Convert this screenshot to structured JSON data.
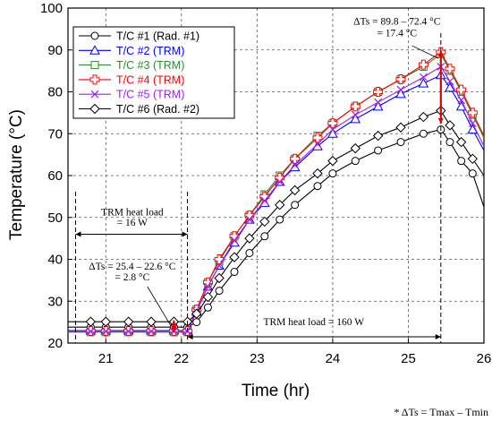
{
  "chart_data": {
    "type": "line",
    "xlabel": "Time (hr)",
    "ylabel": "Temperature (°C)",
    "xlim": [
      20.5,
      26
    ],
    "ylim": [
      20,
      100
    ],
    "xticks": [
      21,
      22,
      23,
      24,
      25,
      26
    ],
    "yticks": [
      20,
      30,
      40,
      50,
      60,
      70,
      80,
      90,
      100
    ],
    "grid": "dashed vertical and horizontal",
    "legend_position": "top-left",
    "series": [
      {
        "name": "T/C #1 (Rad. #1)",
        "color": "#000000",
        "marker": "circle",
        "x": [
          20.5,
          20.8,
          21.0,
          21.3,
          21.6,
          21.9,
          22.08,
          22.2,
          22.35,
          22.5,
          22.7,
          22.9,
          23.1,
          23.3,
          23.5,
          23.8,
          24.0,
          24.3,
          24.6,
          24.9,
          25.2,
          25.43,
          25.55,
          25.7,
          25.85,
          26.0
        ],
        "y": [
          23.8,
          23.8,
          23.8,
          23.8,
          23.8,
          23.8,
          23.8,
          25.0,
          28.5,
          32.5,
          37.0,
          41.5,
          45.5,
          49.5,
          53.0,
          57.5,
          60.5,
          63.5,
          66.0,
          68.0,
          70.0,
          71.0,
          68.0,
          63.5,
          60.5,
          52.5
        ]
      },
      {
        "name": "T/C #2 (TRM)",
        "color": "#0000ff",
        "marker": "triangle",
        "x": [
          20.5,
          20.8,
          21.0,
          21.3,
          21.6,
          21.9,
          22.08,
          22.2,
          22.35,
          22.5,
          22.7,
          22.9,
          23.1,
          23.3,
          23.5,
          23.8,
          24.0,
          24.3,
          24.6,
          24.9,
          25.2,
          25.43,
          25.55,
          25.7,
          25.85,
          26.0
        ],
        "y": [
          23.0,
          23.0,
          23.0,
          23.0,
          23.0,
          23.0,
          23.0,
          27.5,
          33.5,
          38.5,
          44.0,
          49.5,
          53.5,
          58.5,
          62.0,
          67.0,
          70.0,
          73.5,
          76.5,
          79.5,
          82.0,
          84.0,
          81.0,
          76.5,
          71.0,
          66.0
        ]
      },
      {
        "name": "T/C #3 (TRM)",
        "color": "#2e8b2e",
        "marker": "square",
        "x": [
          20.5,
          20.8,
          21.0,
          21.3,
          21.6,
          21.9,
          22.08,
          22.2,
          22.35,
          22.5,
          22.7,
          22.9,
          23.1,
          23.3,
          23.5,
          23.8,
          24.0,
          24.3,
          24.6,
          24.9,
          25.2,
          25.43,
          25.55,
          25.7,
          25.85,
          26.0
        ],
        "y": [
          22.6,
          22.6,
          22.6,
          22.6,
          22.6,
          22.6,
          22.6,
          28.0,
          34.5,
          39.5,
          45.5,
          50.5,
          55.5,
          60.0,
          64.0,
          69.5,
          72.5,
          76.5,
          80.0,
          83.0,
          86.0,
          89.0,
          85.0,
          80.0,
          74.5,
          69.0
        ]
      },
      {
        "name": "T/C #4 (TRM)",
        "color": "#ff0000",
        "marker": "cross",
        "x": [
          20.5,
          20.8,
          21.0,
          21.3,
          21.6,
          21.9,
          22.08,
          22.2,
          22.35,
          22.5,
          22.7,
          22.9,
          23.1,
          23.3,
          23.5,
          23.8,
          24.0,
          24.3,
          24.6,
          24.9,
          25.2,
          25.43,
          25.55,
          25.7,
          25.85,
          26.0
        ],
        "y": [
          22.9,
          22.9,
          22.9,
          22.9,
          22.9,
          22.9,
          22.9,
          28.0,
          34.5,
          40.0,
          45.5,
          50.5,
          55.0,
          59.5,
          64.0,
          69.0,
          72.5,
          76.5,
          80.0,
          83.0,
          86.5,
          89.5,
          85.5,
          80.5,
          75.0,
          69.5
        ]
      },
      {
        "name": "T/C #5 (TRM)",
        "color": "#a020f0",
        "marker": "x",
        "x": [
          20.5,
          20.8,
          21.0,
          21.3,
          21.6,
          21.9,
          22.08,
          22.2,
          22.35,
          22.5,
          22.7,
          22.9,
          23.1,
          23.3,
          23.5,
          23.8,
          24.0,
          24.3,
          24.6,
          24.9,
          25.2,
          25.43,
          25.55,
          25.7,
          25.85,
          26.0
        ],
        "y": [
          22.8,
          22.8,
          22.8,
          22.8,
          22.8,
          22.8,
          22.8,
          27.5,
          33.5,
          38.5,
          44.5,
          49.5,
          54.0,
          58.5,
          62.5,
          67.5,
          71.0,
          74.5,
          77.5,
          80.5,
          83.5,
          86.0,
          82.5,
          78.0,
          72.5,
          67.0
        ]
      },
      {
        "name": "T/C #6 (Rad. #2)",
        "color": "#000000",
        "marker": "diamond",
        "x": [
          20.5,
          20.8,
          21.0,
          21.3,
          21.6,
          21.9,
          22.08,
          22.2,
          22.35,
          22.5,
          22.7,
          22.9,
          23.1,
          23.3,
          23.5,
          23.8,
          24.0,
          24.3,
          24.6,
          24.9,
          25.2,
          25.43,
          25.55,
          25.7,
          25.85,
          26.0
        ],
        "y": [
          25.1,
          25.1,
          25.1,
          25.1,
          25.1,
          25.1,
          25.1,
          27.0,
          31.0,
          35.5,
          40.5,
          45.0,
          49.0,
          53.0,
          56.5,
          60.5,
          63.5,
          66.5,
          69.5,
          71.5,
          74.0,
          75.5,
          72.0,
          68.0,
          64.0,
          60.0
        ]
      }
    ],
    "annotations": {
      "load1_line1": "TRM heat load",
      "load1_line2": "= 16 W",
      "dt1_line1": "ΔTs = 25.4 – 22.6 °C",
      "dt1_line2": "= 2.8 °C",
      "load2": "TRM heat load = 160 W",
      "dt2_line1": "ΔTs = 89.8 – 72.4 °C",
      "dt2_line2": "= 17.4 °C",
      "footnote": "* ΔTs = Tmax – Tmin"
    },
    "markers": {
      "x_load_start": 20.6,
      "x_load_switch": 22.08,
      "x_load_end": 25.43,
      "dt1": [
        22.6,
        25.4
      ],
      "dt1_x": 21.9,
      "dt2": [
        72.4,
        89.8
      ],
      "dt2_x": 25.43
    }
  }
}
